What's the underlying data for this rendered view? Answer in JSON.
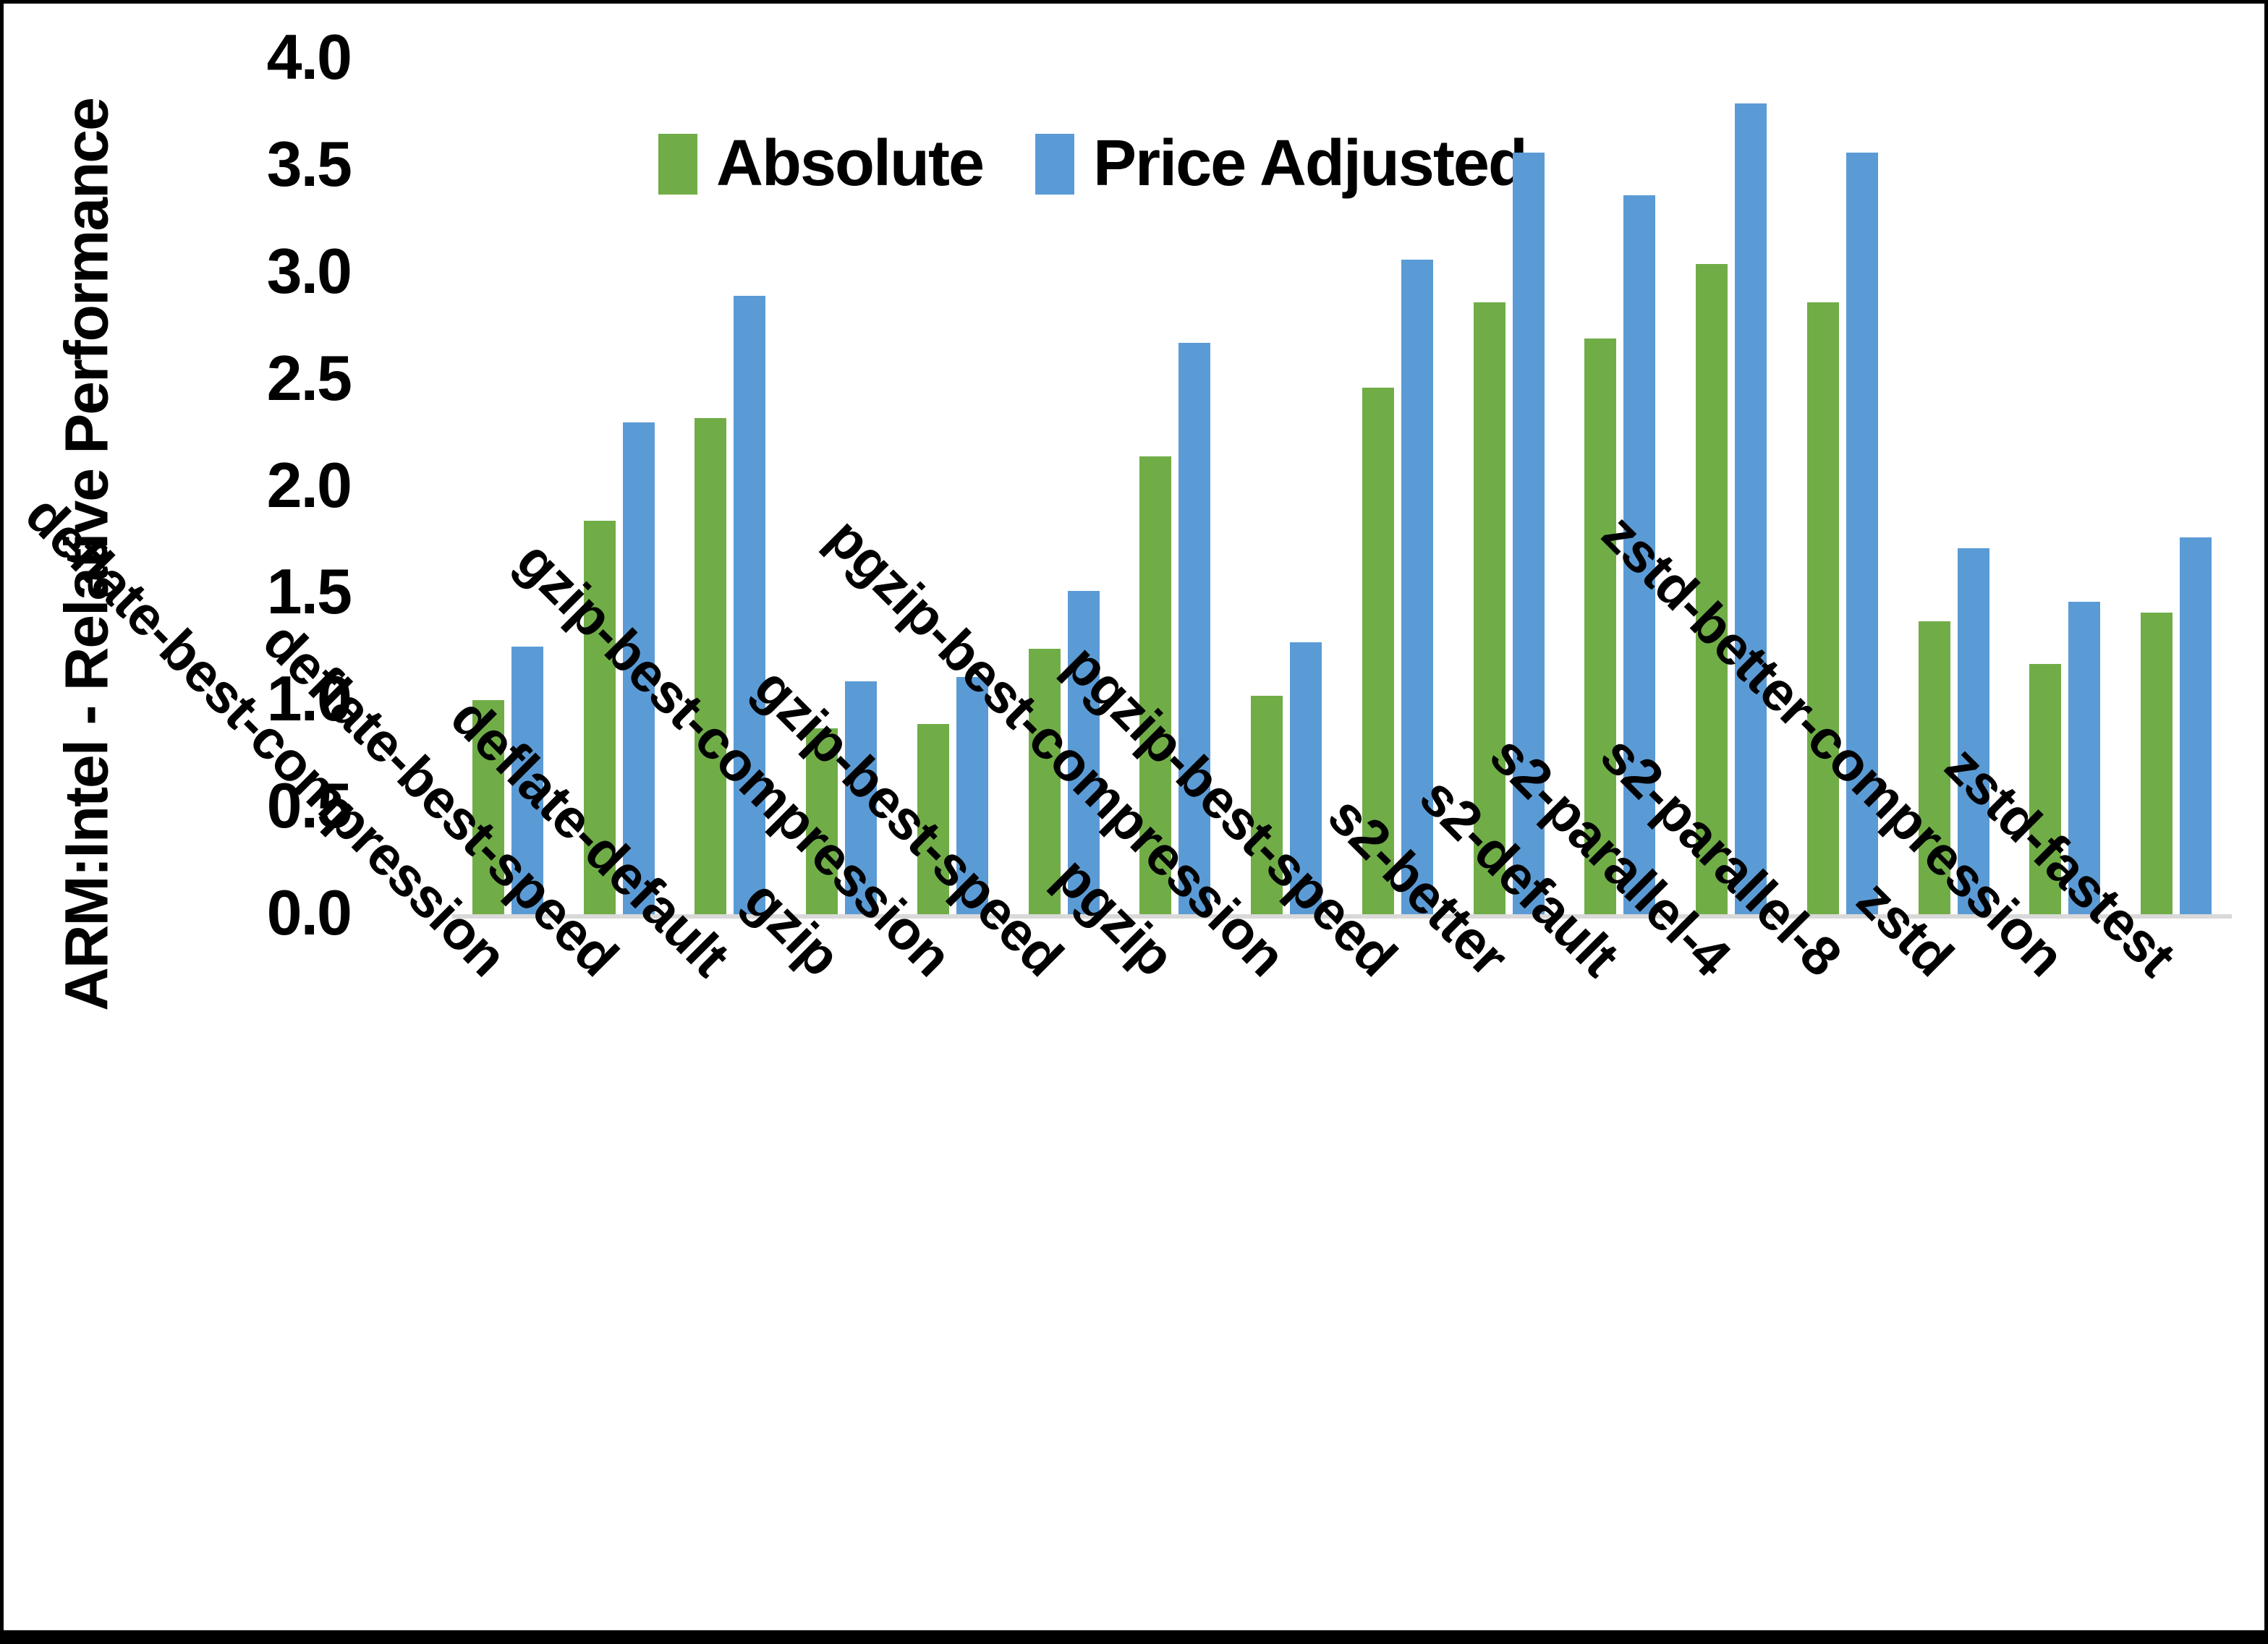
{
  "chart_data": {
    "type": "bar",
    "title": "",
    "xlabel": "",
    "ylabel": "ARM:Intel - Relative Performance",
    "ylim": [
      0,
      4
    ],
    "yticks": [
      "0.0",
      "0.5",
      "1.0",
      "1.5",
      "2.0",
      "2.5",
      "3.0",
      "3.5",
      "4.0"
    ],
    "grid": false,
    "legend_position": "top",
    "categories": [
      "deflate-best-compression",
      "deflate-best-speed",
      "deflate-default",
      "gzip",
      "gzip-best-compression",
      "gzip-best-speed",
      "pgzip",
      "pgzip-best-compression",
      "pgzip-best-speed",
      "s2-better",
      "s2-default",
      "s2-parallel-4",
      "s2-parallel-8",
      "zstd",
      "zstd-better-compression",
      "zstd-fastest"
    ],
    "series": [
      {
        "name": "Absolute",
        "color": "#70ad47",
        "values": [
          1.0,
          1.84,
          2.32,
          0.87,
          0.89,
          1.24,
          2.14,
          1.02,
          2.46,
          2.86,
          2.69,
          3.04,
          2.86,
          1.37,
          1.17,
          1.41
        ]
      },
      {
        "name": "Price Adjusted",
        "color": "#5b9bd5",
        "values": [
          1.25,
          2.3,
          2.89,
          1.09,
          1.11,
          1.51,
          2.67,
          1.27,
          3.06,
          3.56,
          3.36,
          3.79,
          3.56,
          1.71,
          1.46,
          1.76
        ]
      }
    ],
    "axis_line_color": "#d9d9d9"
  }
}
